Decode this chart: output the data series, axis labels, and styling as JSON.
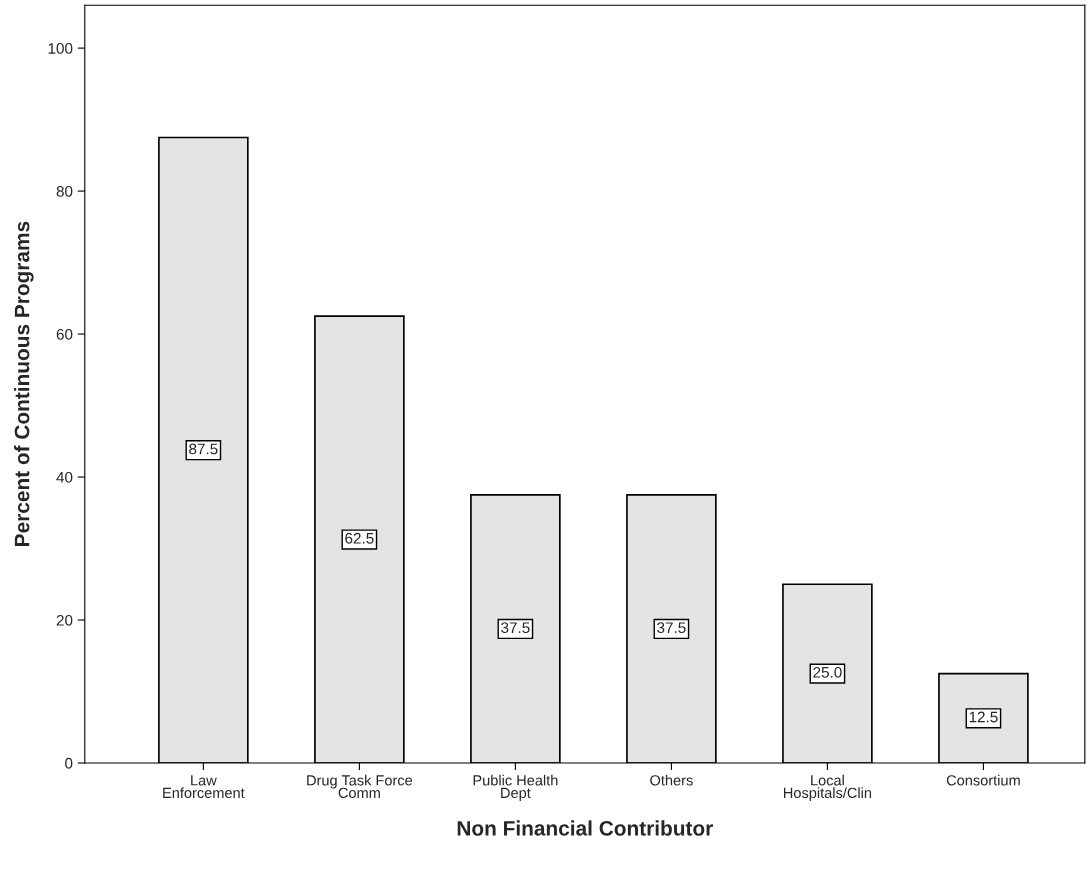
{
  "chart_data": {
    "type": "bar",
    "xlabel": "Non Financial Contributor",
    "ylabel": "Percent of Continuous Programs",
    "categories": [
      "Law\nEnforcement",
      "Drug Task Force\nComm",
      "Public Health\nDept",
      "Others",
      "Local\nHospitals/Clin",
      "Consortium"
    ],
    "values": [
      87.5,
      62.5,
      37.5,
      37.5,
      25.0,
      12.5
    ],
    "value_labels": [
      "87.5",
      "62.5",
      "37.5",
      "37.5",
      "25.0",
      "12.5"
    ],
    "color": "#e4e4e4",
    "ylim": [
      0,
      106
    ],
    "yticks": [
      0,
      20,
      40,
      60,
      80,
      100
    ],
    "grid": false,
    "legend": false
  }
}
